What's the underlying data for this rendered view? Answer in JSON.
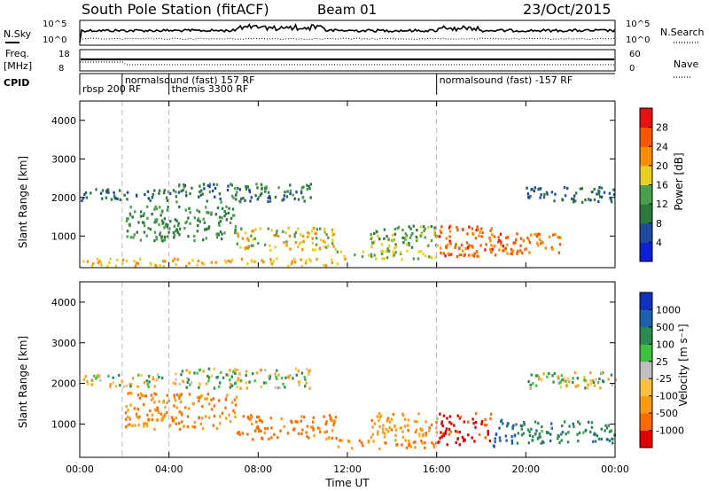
{
  "header": {
    "station": "South Pole Station (fitACF)",
    "beam": "Beam 01",
    "date": "23/Oct/2015"
  },
  "top_panels": {
    "nsky_label": "N.Sky",
    "nsky_ticks": [
      "10^5",
      "10^0"
    ],
    "nsearch_label": "N.Search",
    "nsearch_ticks": [
      "10^5",
      "10^0"
    ],
    "freq_label_1": "Freq.",
    "freq_label_2": "[MHz]",
    "freq_ticks": [
      "18",
      "8"
    ],
    "nave_label": "Nave",
    "nave_ticks": [
      "60",
      "0"
    ],
    "cpid_label": "CPID",
    "cpid_segments": [
      {
        "label": "rbsp 200 RF",
        "start_hour": 0,
        "row": 2
      },
      {
        "label": "normalsound (fast) 157 RF",
        "start_hour": 1.9,
        "row": 1
      },
      {
        "label": "themis 3300 RF",
        "start_hour": 4.0,
        "row": 2
      },
      {
        "label": "normalsound (fast) -157 RF",
        "start_hour": 16.0,
        "row": 1
      }
    ]
  },
  "axes": {
    "x_ticks": [
      "00:00",
      "04:00",
      "08:00",
      "12:00",
      "16:00",
      "20:00",
      "00:00"
    ],
    "x_label": "Time UT",
    "y_label": "Slant Range [km]",
    "y_ticks": [
      "1000",
      "2000",
      "3000",
      "4000"
    ]
  },
  "colorbars": {
    "power": {
      "label": "Power [dB]",
      "ticks": [
        "4",
        "8",
        "12",
        "16",
        "20",
        "24",
        "28"
      ]
    },
    "velocity": {
      "label": "Velocity [m s⁻¹]",
      "ticks": [
        "-1000",
        "-500",
        "-100",
        "-25",
        "25",
        "100",
        "500",
        "1000"
      ]
    }
  },
  "colors": {
    "power_scale": [
      "#1020d8",
      "#204aa0",
      "#2a7a3a",
      "#4aa04a",
      "#e6d020",
      "#ff8c00",
      "#ff5500",
      "#e81010"
    ],
    "velocity_scale": [
      "#e00000",
      "#ff6a00",
      "#ff9a10",
      "#ffc040",
      "#c0c0c0",
      "#40c040",
      "#2a8a50",
      "#2060b0",
      "#1030c0"
    ]
  },
  "chart_data": [
    {
      "type": "heatmap",
      "title": "Power",
      "xlabel": "Time UT",
      "ylabel": "Slant Range [km]",
      "xlim": [
        0,
        24
      ],
      "ylim": [
        180,
        4500
      ],
      "colorbar": "Power [dB]",
      "regions": [
        {
          "t0": 0.0,
          "t1": 4.2,
          "r0": 1950,
          "r1": 2250,
          "value": 8
        },
        {
          "t0": 4.2,
          "t1": 10.5,
          "r0": 1900,
          "r1": 2400,
          "value": 10
        },
        {
          "t0": 2.0,
          "t1": 7.0,
          "r0": 900,
          "r1": 1800,
          "value": 12
        },
        {
          "t0": 7.0,
          "t1": 11.5,
          "r0": 650,
          "r1": 1250,
          "value": 18
        },
        {
          "t0": 11.5,
          "t1": 16.0,
          "r0": 420,
          "r1": 650,
          "value": 16
        },
        {
          "t0": 13.0,
          "t1": 16.0,
          "r0": 700,
          "r1": 1300,
          "value": 14
        },
        {
          "t0": 16.0,
          "t1": 19.0,
          "r0": 500,
          "r1": 1300,
          "value": 26
        },
        {
          "t0": 19.0,
          "t1": 21.5,
          "r0": 550,
          "r1": 1100,
          "value": 24
        },
        {
          "t0": 20.0,
          "t1": 24.0,
          "r0": 1900,
          "r1": 2300,
          "value": 8
        },
        {
          "t0": 0.0,
          "t1": 12.0,
          "r0": 250,
          "r1": 450,
          "value": 20
        }
      ]
    },
    {
      "type": "heatmap",
      "title": "Velocity",
      "xlabel": "Time UT",
      "ylabel": "Slant Range [km]",
      "xlim": [
        0,
        24
      ],
      "ylim": [
        180,
        4500
      ],
      "colorbar": "Velocity [m s⁻¹]",
      "regions": [
        {
          "t0": 0.0,
          "t1": 4.2,
          "r0": 1950,
          "r1": 2250,
          "value": 0
        },
        {
          "t0": 4.2,
          "t1": 10.5,
          "r0": 1900,
          "r1": 2400,
          "value": 0
        },
        {
          "t0": 2.0,
          "t1": 7.0,
          "r0": 900,
          "r1": 1800,
          "value": -300
        },
        {
          "t0": 7.0,
          "t1": 11.5,
          "r0": 650,
          "r1": 1250,
          "value": -400
        },
        {
          "t0": 11.5,
          "t1": 16.0,
          "r0": 420,
          "r1": 650,
          "value": -300
        },
        {
          "t0": 13.0,
          "t1": 16.0,
          "r0": 700,
          "r1": 1300,
          "value": -200
        },
        {
          "t0": 16.0,
          "t1": 18.5,
          "r0": 500,
          "r1": 1300,
          "value": -800
        },
        {
          "t0": 18.5,
          "t1": 19.5,
          "r0": 450,
          "r1": 1200,
          "value": 600
        },
        {
          "t0": 19.5,
          "t1": 24.0,
          "r0": 550,
          "r1": 1100,
          "value": 200
        },
        {
          "t0": 20.0,
          "t1": 24.0,
          "r0": 1900,
          "r1": 2300,
          "value": 0
        }
      ]
    }
  ]
}
